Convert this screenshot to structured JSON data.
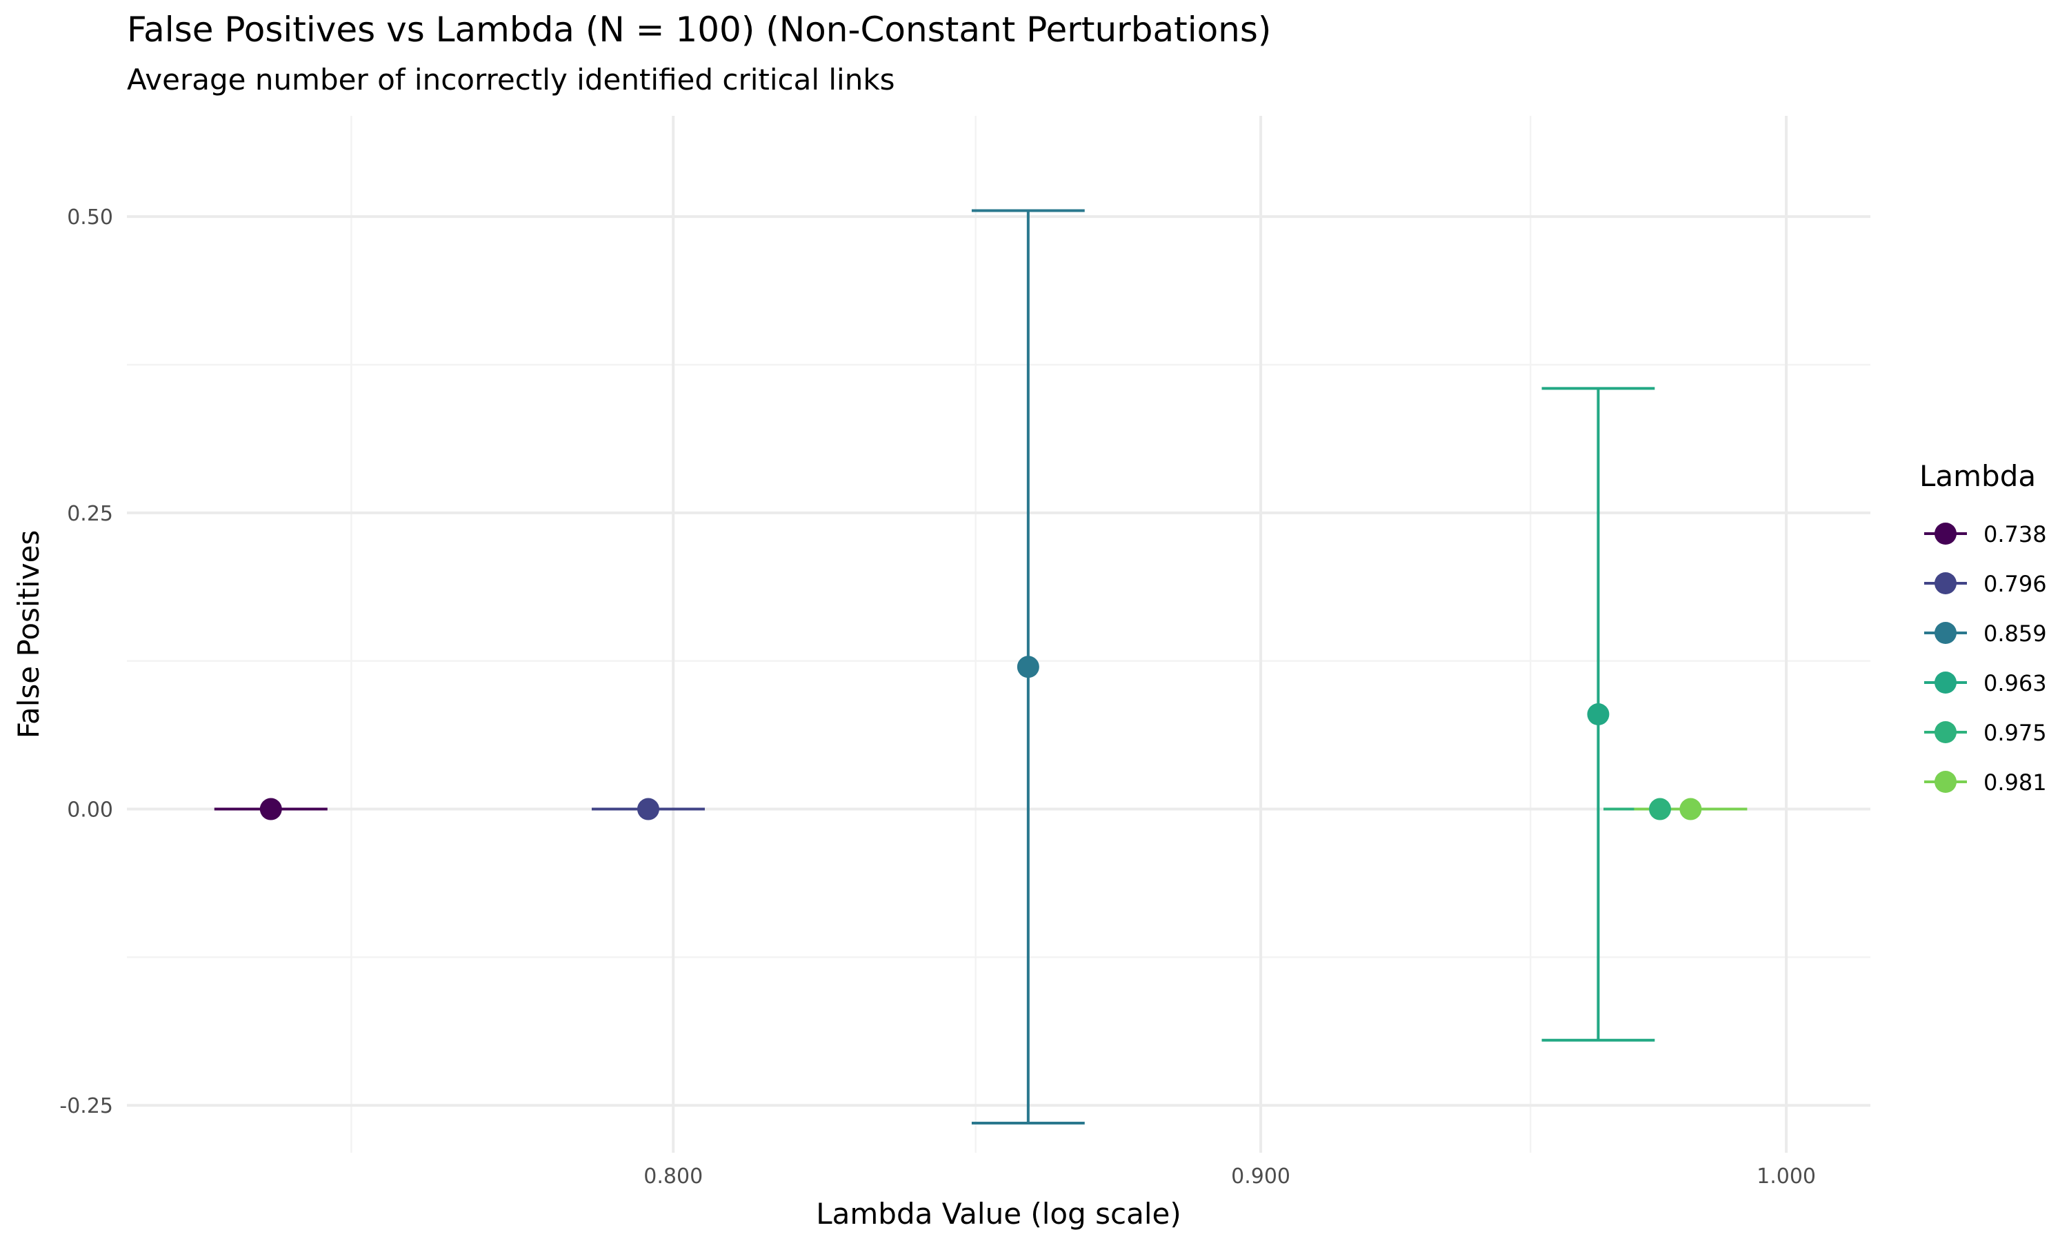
{
  "chart_data": {
    "type": "scatter",
    "title": "False Positives vs Lambda (N = 100) (Non-Constant Perturbations)",
    "subtitle": "Average number of incorrectly identified critical links",
    "xlabel": "Lambda Value (log scale)",
    "ylabel": "False Positives",
    "x_scale": "log10",
    "xlim": [
      0.717,
      1.017
    ],
    "ylim": [
      -0.29,
      0.585
    ],
    "x_ticks": [
      0.8,
      0.9,
      1.0
    ],
    "x_tick_labels": [
      "0.800",
      "0.900",
      "1.000"
    ],
    "x_minor_ticks": [
      0.75,
      0.85,
      0.95
    ],
    "y_ticks": [
      -0.25,
      0.0,
      0.25,
      0.5
    ],
    "y_tick_labels": [
      "-0.25",
      "0.00",
      "0.25",
      "0.50"
    ],
    "y_minor_ticks": [
      -0.125,
      0.125,
      0.375
    ],
    "grid": true,
    "legend_title": "Lambda",
    "legend_position": "right",
    "series": [
      {
        "name": "0.738",
        "x": 0.738,
        "y": 0.0,
        "ymin": 0.0,
        "ymax": 0.0,
        "color": "#440154"
      },
      {
        "name": "0.796",
        "x": 0.796,
        "y": 0.0,
        "ymin": 0.0,
        "ymax": 0.0,
        "color": "#414487"
      },
      {
        "name": "0.859",
        "x": 0.859,
        "y": 0.12,
        "ymin": -0.265,
        "ymax": 0.505,
        "color": "#2A788E"
      },
      {
        "name": "0.963",
        "x": 0.963,
        "y": 0.08,
        "ymin": -0.195,
        "ymax": 0.355,
        "color": "#22A884"
      },
      {
        "name": "0.975",
        "x": 0.975,
        "y": 0.0,
        "ymin": 0.0,
        "ymax": 0.0,
        "color": "#2DB27D"
      },
      {
        "name": "0.981",
        "x": 0.981,
        "y": 0.0,
        "ymin": 0.0,
        "ymax": 0.0,
        "color": "#7AD151"
      }
    ]
  }
}
